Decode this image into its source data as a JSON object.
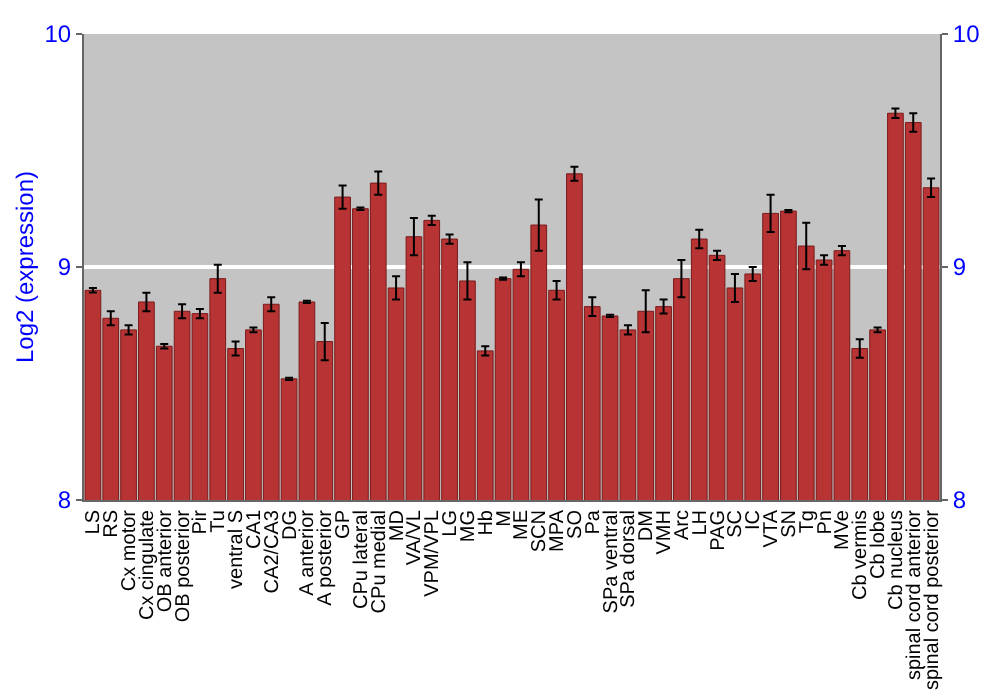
{
  "chart_data": {
    "type": "bar",
    "ylabel": "Log2 (expression)",
    "categories": [
      "LS",
      "RS",
      "Cx motor",
      "Cx cingulate",
      "OB anterior",
      "OB posterior",
      "Pir",
      "Tu",
      "ventral S",
      "CA1",
      "CA2/CA3",
      "DG",
      "A anterior",
      "A posterior",
      "GP",
      "CPu lateral",
      "CPu medial",
      "MD",
      "VA/VL",
      "VPM/VPL",
      "LG",
      "MG",
      "Hb",
      "M",
      "ME",
      "SCN",
      "MPA",
      "SO",
      "Pa",
      "SPa ventral",
      "SPa dorsal",
      "DM",
      "VMH",
      "Arc",
      "LH",
      "PAG",
      "SC",
      "IC",
      "VTA",
      "SN",
      "Tg",
      "Pn",
      "MVe",
      "Cb vermis",
      "Cb lobe",
      "Cb nucleus",
      "spinal cord anterior",
      "spinal cord posterior"
    ],
    "values": [
      8.9,
      8.78,
      8.73,
      8.85,
      8.66,
      8.81,
      8.8,
      8.95,
      8.65,
      8.73,
      8.84,
      8.52,
      8.85,
      8.68,
      9.3,
      9.25,
      9.36,
      8.91,
      9.13,
      9.2,
      9.12,
      8.94,
      8.64,
      8.95,
      8.99,
      9.18,
      8.9,
      9.4,
      8.83,
      8.79,
      8.73,
      8.81,
      8.83,
      8.95,
      9.12,
      9.05,
      8.91,
      8.97,
      9.23,
      9.24,
      9.09,
      9.03,
      9.07,
      8.65,
      8.73,
      9.66,
      9.62,
      9.34
    ],
    "errors": [
      0.01,
      0.03,
      0.02,
      0.04,
      0.01,
      0.03,
      0.02,
      0.06,
      0.03,
      0.01,
      0.03,
      0.005,
      0.005,
      0.08,
      0.05,
      0.005,
      0.05,
      0.05,
      0.08,
      0.02,
      0.02,
      0.08,
      0.02,
      0.005,
      0.03,
      0.11,
      0.04,
      0.03,
      0.04,
      0.005,
      0.02,
      0.09,
      0.03,
      0.08,
      0.04,
      0.02,
      0.06,
      0.03,
      0.08,
      0.005,
      0.1,
      0.02,
      0.02,
      0.04,
      0.01,
      0.02,
      0.04,
      0.04
    ],
    "color": "#b83434",
    "ylim": [
      8,
      10
    ],
    "yticks": [
      8,
      9,
      10
    ],
    "y2lim": [
      8,
      10
    ],
    "y2ticks": [
      8,
      9,
      10
    ],
    "grid": "y"
  }
}
